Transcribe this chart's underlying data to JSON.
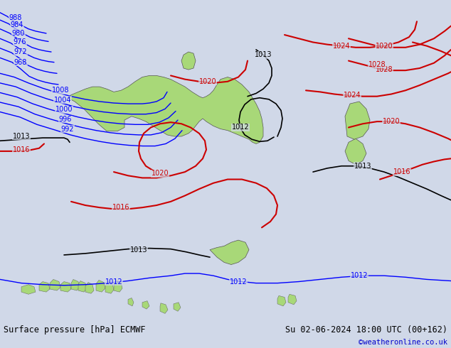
{
  "title_left": "Surface pressure [hPa] ECMWF",
  "title_right": "Su 02-06-2024 18:00 UTC (00+162)",
  "credit": "©weatheronline.co.uk",
  "background_color": "#d0d8e8",
  "land_color": "#b8d8a0",
  "australia_color": "#a8d878",
  "figsize": [
    6.34,
    4.9
  ],
  "dpi": 100,
  "bottom_bar_color": "#e8e8e8",
  "bottom_bar_height": 0.08,
  "isobars_blue": {
    "color": "#0000ff",
    "linewidth": 1.0
  },
  "isobars_red": {
    "color": "#cc0000",
    "linewidth": 1.5
  },
  "isobars_black": {
    "color": "#000000",
    "linewidth": 1.2
  },
  "font_size_labels": 7,
  "font_size_bottom": 8.5,
  "font_size_credit": 7.5
}
